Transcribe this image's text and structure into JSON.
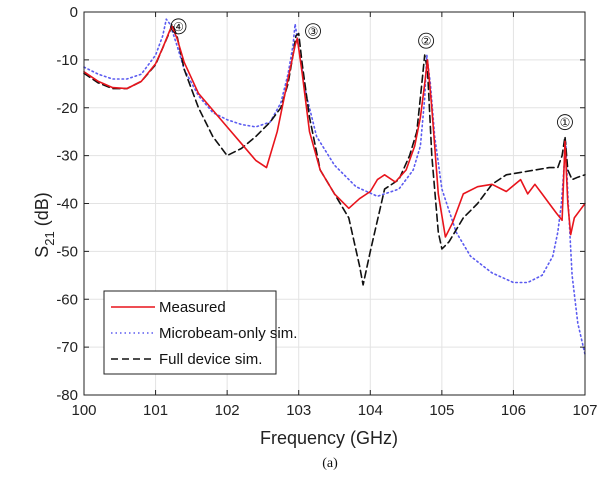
{
  "chart_data": {
    "type": "line",
    "xlabel": "Frequency (GHz)",
    "ylabel_main": "S",
    "ylabel_sub": "21",
    "ylabel_unit": " (dB)",
    "xlim": [
      100,
      107
    ],
    "ylim": [
      -80,
      0
    ],
    "xticks": [
      100,
      101,
      102,
      103,
      104,
      105,
      106,
      107
    ],
    "yticks": [
      0,
      -10,
      -20,
      -30,
      -40,
      -50,
      -60,
      -70,
      -80
    ],
    "grid": true,
    "legend_position": "bottom-left",
    "caption": "(a)",
    "annotations": [
      {
        "label": "④",
        "x": 101.32,
        "y": -3
      },
      {
        "label": "③",
        "x": 103.2,
        "y": -4
      },
      {
        "label": "②",
        "x": 104.78,
        "y": -6
      },
      {
        "label": "①",
        "x": 106.72,
        "y": -23
      }
    ],
    "series": [
      {
        "name": "Measured",
        "color": "#e8141c",
        "style": "solid",
        "x": [
          100,
          100.2,
          100.4,
          100.6,
          100.8,
          101.0,
          101.1,
          101.2,
          101.23,
          101.3,
          101.4,
          101.6,
          101.8,
          102.0,
          102.2,
          102.4,
          102.55,
          102.7,
          102.85,
          102.95,
          102.98,
          103.05,
          103.15,
          103.3,
          103.5,
          103.7,
          103.85,
          104.0,
          104.1,
          104.2,
          104.35,
          104.5,
          104.62,
          104.7,
          104.76,
          104.8,
          104.86,
          104.95,
          105.05,
          105.15,
          105.3,
          105.5,
          105.7,
          105.9,
          106.1,
          106.2,
          106.3,
          106.4,
          106.5,
          106.6,
          106.68,
          106.72,
          106.76,
          106.8,
          106.85,
          106.95,
          107.0
        ],
        "y": [
          -12.5,
          -14.5,
          -15.8,
          -16,
          -14.5,
          -10.8,
          -7.5,
          -3.8,
          -3,
          -5.5,
          -10.5,
          -17,
          -20.5,
          -24,
          -27.5,
          -31,
          -32.5,
          -25,
          -14,
          -7,
          -5.5,
          -13,
          -25,
          -33,
          -38,
          -41,
          -39,
          -37.5,
          -35,
          -34,
          -35.5,
          -33,
          -28,
          -22,
          -15,
          -10,
          -20,
          -38,
          -47,
          -44,
          -38,
          -36.5,
          -36,
          -37.5,
          -35,
          -38,
          -36,
          -38,
          -40,
          -42,
          -43.5,
          -27,
          -40,
          -46.5,
          -43,
          -41,
          -40
        ]
      },
      {
        "name": "Microbeam-only sim.",
        "color": "#5b5bf0",
        "style": "dotted",
        "x": [
          100,
          100.2,
          100.4,
          100.6,
          100.8,
          101.0,
          101.1,
          101.15,
          101.2,
          101.3,
          101.4,
          101.6,
          101.8,
          102.0,
          102.2,
          102.4,
          102.6,
          102.75,
          102.85,
          102.92,
          102.95,
          103.0,
          103.1,
          103.25,
          103.5,
          103.8,
          104.1,
          104.4,
          104.6,
          104.7,
          104.76,
          104.79,
          104.84,
          104.9,
          105.0,
          105.2,
          105.4,
          105.7,
          106.0,
          106.2,
          106.4,
          106.55,
          106.62,
          106.67,
          106.7,
          106.73,
          106.76,
          106.82,
          106.9,
          107.0
        ],
        "y": [
          -11.5,
          -13,
          -14,
          -14,
          -13,
          -9,
          -5,
          -1.5,
          -2.5,
          -7,
          -12,
          -17.5,
          -21,
          -22.5,
          -23.5,
          -24,
          -23,
          -19,
          -13,
          -7,
          -2.5,
          -7.5,
          -17,
          -26,
          -32,
          -36.5,
          -38.5,
          -37,
          -33,
          -28,
          -18,
          -9,
          -15,
          -26,
          -37,
          -46,
          -51,
          -54.5,
          -56.5,
          -56.5,
          -55,
          -51,
          -46,
          -40,
          -34,
          -27,
          -38,
          -55,
          -65,
          -71.5
        ]
      },
      {
        "name": "Full device sim.",
        "color": "#111111",
        "style": "dashed",
        "x": [
          100,
          100.2,
          100.4,
          100.6,
          100.8,
          101.0,
          101.1,
          101.2,
          101.23,
          101.3,
          101.4,
          101.6,
          101.8,
          102.0,
          102.2,
          102.4,
          102.6,
          102.75,
          102.85,
          102.92,
          102.96,
          103.0,
          103.05,
          103.15,
          103.3,
          103.5,
          103.7,
          103.85,
          103.9,
          104.0,
          104.2,
          104.4,
          104.55,
          104.65,
          104.72,
          104.76,
          104.8,
          104.86,
          104.95,
          105.0,
          105.1,
          105.3,
          105.5,
          105.7,
          105.9,
          106.1,
          106.3,
          106.5,
          106.62,
          106.68,
          106.72,
          106.76,
          106.82,
          106.9,
          107.0
        ],
        "y": [
          -12.8,
          -14.8,
          -16,
          -16,
          -14.5,
          -11,
          -7.5,
          -4,
          -2.5,
          -5,
          -12,
          -20,
          -26,
          -30,
          -28.5,
          -26,
          -23,
          -20,
          -15,
          -9,
          -5,
          -4.5,
          -11,
          -22,
          -33,
          -38,
          -43,
          -53,
          -57,
          -50,
          -37,
          -35,
          -30,
          -25,
          -15,
          -9,
          -12,
          -30,
          -46,
          -49.5,
          -48,
          -43,
          -40,
          -36,
          -34,
          -33.5,
          -33,
          -32.5,
          -32.5,
          -30,
          -26,
          -33,
          -35,
          -34.5,
          -34
        ]
      }
    ]
  }
}
